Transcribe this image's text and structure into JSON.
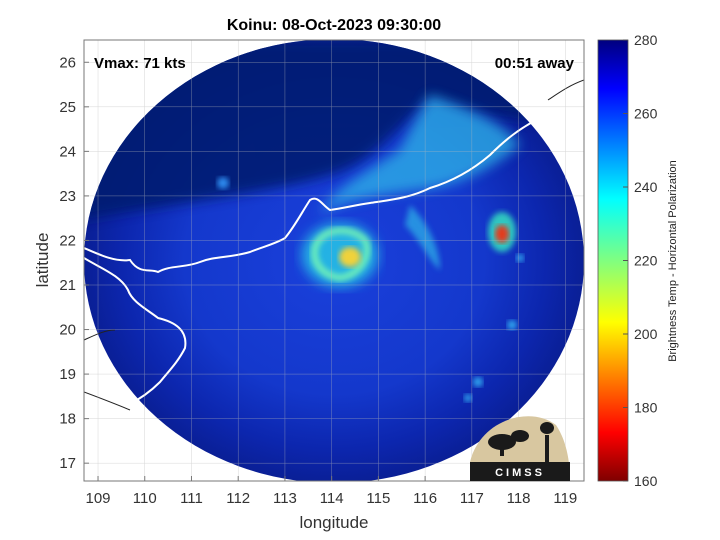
{
  "title": "Koinu: 08-Oct-2023 09:30:00",
  "vmax_text": "Vmax: 71 kts",
  "away_text": "00:51 away",
  "logo_text": "CIMSS",
  "map": {
    "xlabel": "longitude",
    "ylabel": "latitude",
    "xlim": [
      108.7,
      119.4
    ],
    "ylim": [
      16.6,
      26.5
    ],
    "xticks": [
      "109",
      "110",
      "111",
      "112",
      "113",
      "114",
      "115",
      "116",
      "117",
      "118",
      "119"
    ],
    "yticks": [
      "17",
      "18",
      "19",
      "20",
      "21",
      "22",
      "23",
      "24",
      "25",
      "26"
    ],
    "grid": true
  },
  "colorbar": {
    "label": "Brightness Temp - Horizontal Polarization",
    "range": [
      160,
      280
    ],
    "ticks": [
      "280",
      "260",
      "240",
      "220",
      "200",
      "180",
      "160"
    ],
    "colormap": "jet"
  },
  "colors": {
    "background_cold": "#0b1f9a",
    "outer_cold": "#061a72",
    "warm_core": "#f0d23a",
    "coastline": "#ffffff"
  }
}
